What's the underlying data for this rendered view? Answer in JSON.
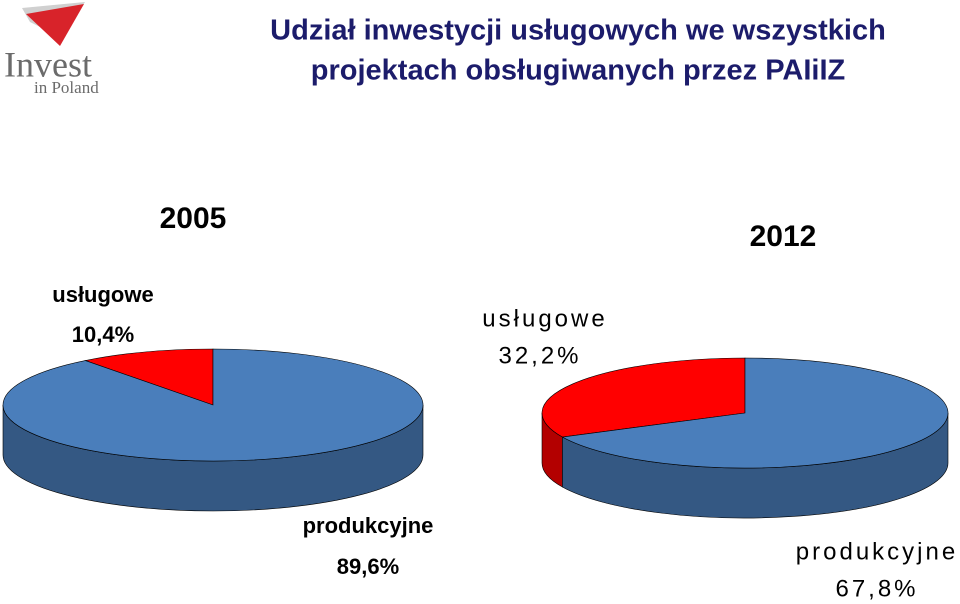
{
  "header": {
    "title": [
      "Udział inwestycji usługowych we wszystkich",
      "projektach obsługiwanych przez PAIiIZ"
    ],
    "logo": [
      "Invest",
      "in Poland"
    ]
  },
  "chart_data": [
    {
      "type": "pie",
      "title": "2005",
      "categories": [
        "usługowe",
        "produkcyjne"
      ],
      "values": [
        10.4,
        89.6
      ],
      "value_labels": [
        "10,4%",
        "89,6%"
      ],
      "colors": [
        "#ff0000",
        "#4a7ebb"
      ]
    },
    {
      "type": "pie",
      "title": "2012",
      "categories": [
        "usługowe",
        "produkcyjne"
      ],
      "values": [
        32.2,
        67.8
      ],
      "value_labels": [
        "32,2%",
        "67,8%"
      ],
      "colors": [
        "#ff0000",
        "#4a7ebb"
      ]
    }
  ]
}
